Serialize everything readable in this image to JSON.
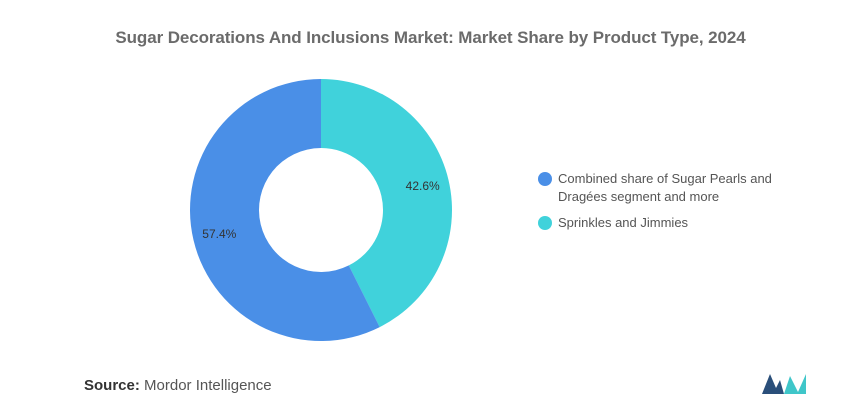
{
  "chart_data": {
    "type": "pie",
    "title": "Sugar Decorations And Inclusions Market: Market Share by Product Type, 2024",
    "donut": true,
    "slices": [
      {
        "label": "Sprinkles and Jimmies",
        "value": 42.6,
        "value_label": "42.6%",
        "color": "#40d2db"
      },
      {
        "label": "Combined share of Sugar Pearls and Dragées segment and more",
        "value": 57.4,
        "value_label": "57.4%",
        "color": "#4a8fe7"
      }
    ],
    "legend": {
      "placement": "right",
      "entries": [
        {
          "label": "Combined share of Sugar Pearls and Dragées segment and more",
          "color": "#4a8fe7"
        },
        {
          "label": "Sprinkles and Jimmies",
          "color": "#40d2db"
        }
      ]
    }
  },
  "source": {
    "label": "Source:",
    "text": "Mordor Intelligence"
  },
  "logo": {
    "icon": "mordor-intelligence-logo",
    "colors": [
      "#2a4f7a",
      "#3fc6c9"
    ]
  }
}
